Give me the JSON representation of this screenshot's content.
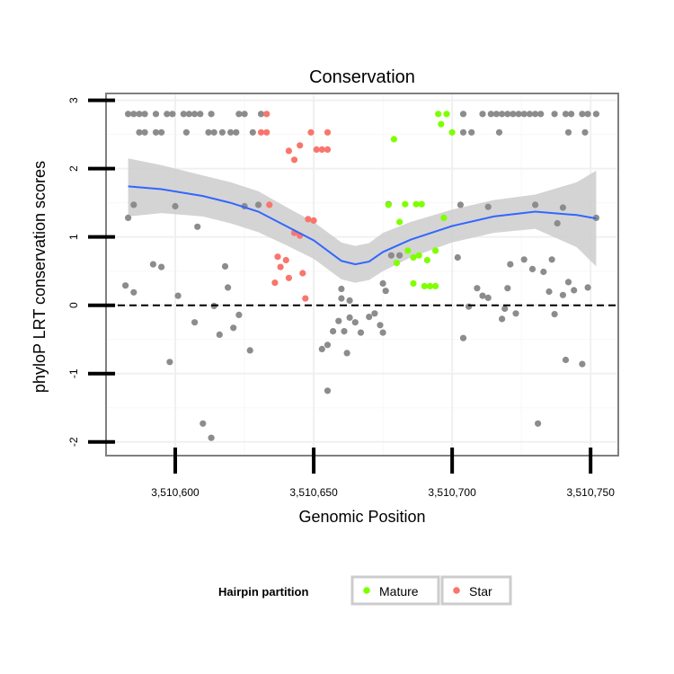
{
  "chart_data": {
    "type": "scatter",
    "title": "Conservation",
    "xlabel": "Genomic Position",
    "ylabel": "phyloP LRT conservation scores",
    "xlim": [
      3510575,
      3510760
    ],
    "ylim": [
      -2.2,
      3.1
    ],
    "x_ticks": [
      3510600,
      3510650,
      3510700,
      3510750
    ],
    "x_tick_labels": [
      "3,510,600",
      "3,510,650",
      "3,510,700",
      "3,510,750"
    ],
    "y_ticks": [
      3,
      2,
      1,
      0,
      -1,
      -2
    ],
    "y_tick_labels": [
      "3",
      "2",
      "1",
      "0",
      "-1",
      "-2"
    ],
    "reference_line_y": 0,
    "legend": {
      "title": "Hairpin partition",
      "placement": "bottom",
      "entries": [
        {
          "label": "Mature",
          "color": "#7fff00"
        },
        {
          "label": "Star",
          "color": "#f8766d"
        }
      ]
    },
    "colors": {
      "other": "#8c8c8c",
      "mature": "#7fff00",
      "star": "#f8766d",
      "smooth": "#3366ff",
      "band": "#cccccc"
    },
    "series": [
      {
        "name": "Other",
        "points": [
          [
            3510583,
            2.8
          ],
          [
            3510585,
            2.8
          ],
          [
            3510587,
            2.8
          ],
          [
            3510589,
            2.8
          ],
          [
            3510593,
            2.8
          ],
          [
            3510597,
            2.8
          ],
          [
            3510599,
            2.8
          ],
          [
            3510603,
            2.8
          ],
          [
            3510605,
            2.8
          ],
          [
            3510607,
            2.8
          ],
          [
            3510609,
            2.8
          ],
          [
            3510613,
            2.8
          ],
          [
            3510623,
            2.8
          ],
          [
            3510625,
            2.8
          ],
          [
            3510631,
            2.8
          ],
          [
            3510587,
            2.53
          ],
          [
            3510589,
            2.53
          ],
          [
            3510593,
            2.53
          ],
          [
            3510595,
            2.53
          ],
          [
            3510604,
            2.53
          ],
          [
            3510612,
            2.53
          ],
          [
            3510614,
            2.53
          ],
          [
            3510617,
            2.53
          ],
          [
            3510620,
            2.53
          ],
          [
            3510622,
            2.53
          ],
          [
            3510628,
            2.53
          ],
          [
            3510704,
            2.8
          ],
          [
            3510711,
            2.8
          ],
          [
            3510714,
            2.8
          ],
          [
            3510716,
            2.8
          ],
          [
            3510718,
            2.8
          ],
          [
            3510720,
            2.8
          ],
          [
            3510722,
            2.8
          ],
          [
            3510724,
            2.8
          ],
          [
            3510726,
            2.8
          ],
          [
            3510728,
            2.8
          ],
          [
            3510730,
            2.8
          ],
          [
            3510732,
            2.8
          ],
          [
            3510737,
            2.8
          ],
          [
            3510741,
            2.8
          ],
          [
            3510743,
            2.8
          ],
          [
            3510747,
            2.8
          ],
          [
            3510749,
            2.8
          ],
          [
            3510752,
            2.8
          ],
          [
            3510704,
            2.53
          ],
          [
            3510707,
            2.53
          ],
          [
            3510717,
            2.53
          ],
          [
            3510742,
            2.53
          ],
          [
            3510748,
            2.53
          ],
          [
            3510583,
            1.28
          ],
          [
            3510585,
            1.47
          ],
          [
            3510600,
            1.45
          ],
          [
            3510608,
            1.15
          ],
          [
            3510625,
            1.45
          ],
          [
            3510630,
            1.47
          ],
          [
            3510677,
            1.48
          ],
          [
            3510703,
            1.47
          ],
          [
            3510713,
            1.44
          ],
          [
            3510730,
            1.47
          ],
          [
            3510740,
            1.43
          ],
          [
            3510752,
            1.28
          ],
          [
            3510738,
            1.2
          ],
          [
            3510592,
            0.6
          ],
          [
            3510595,
            0.56
          ],
          [
            3510618,
            0.57
          ],
          [
            3510678,
            0.73
          ],
          [
            3510681,
            0.73
          ],
          [
            3510702,
            0.7
          ],
          [
            3510721,
            0.6
          ],
          [
            3510726,
            0.67
          ],
          [
            3510729,
            0.53
          ],
          [
            3510733,
            0.49
          ],
          [
            3510736,
            0.67
          ],
          [
            3510582,
            0.29
          ],
          [
            3510585,
            0.19
          ],
          [
            3510601,
            0.14
          ],
          [
            3510619,
            0.26
          ],
          [
            3510660,
            0.24
          ],
          [
            3510675,
            0.32
          ],
          [
            3510709,
            0.25
          ],
          [
            3510711,
            0.14
          ],
          [
            3510713,
            0.11
          ],
          [
            3510720,
            0.25
          ],
          [
            3510735,
            0.2
          ],
          [
            3510740,
            0.15
          ],
          [
            3510742,
            0.34
          ],
          [
            3510744,
            0.22
          ],
          [
            3510749,
            0.26
          ],
          [
            3510614,
            -0.01
          ],
          [
            3510660,
            0.1
          ],
          [
            3510663,
            0.07
          ],
          [
            3510676,
            0.21
          ],
          [
            3510706,
            -0.02
          ],
          [
            3510719,
            -0.05
          ],
          [
            3510718,
            -0.2
          ],
          [
            3510723,
            -0.12
          ],
          [
            3510737,
            -0.13
          ],
          [
            3510607,
            -0.25
          ],
          [
            3510616,
            -0.43
          ],
          [
            3510621,
            -0.33
          ],
          [
            3510623,
            -0.14
          ],
          [
            3510627,
            -0.66
          ],
          [
            3510653,
            -0.64
          ],
          [
            3510655,
            -0.58
          ],
          [
            3510657,
            -0.38
          ],
          [
            3510659,
            -0.23
          ],
          [
            3510661,
            -0.38
          ],
          [
            3510663,
            -0.18
          ],
          [
            3510665,
            -0.25
          ],
          [
            3510667,
            -0.4
          ],
          [
            3510670,
            -0.17
          ],
          [
            3510672,
            -0.12
          ],
          [
            3510674,
            -0.29
          ],
          [
            3510675,
            -0.4
          ],
          [
            3510704,
            -0.48
          ],
          [
            3510598,
            -0.83
          ],
          [
            3510662,
            -0.7
          ],
          [
            3510741,
            -0.8
          ],
          [
            3510747,
            -0.86
          ],
          [
            3510655,
            -1.25
          ],
          [
            3510610,
            -1.73
          ],
          [
            3510613,
            -1.94
          ],
          [
            3510731,
            -1.73
          ]
        ]
      },
      {
        "name": "Mature",
        "points": [
          [
            3510679,
            2.43
          ],
          [
            3510695,
            2.8
          ],
          [
            3510698,
            2.8
          ],
          [
            3510696,
            2.65
          ],
          [
            3510700,
            2.53
          ],
          [
            3510677,
            1.47
          ],
          [
            3510683,
            1.48
          ],
          [
            3510687,
            1.48
          ],
          [
            3510689,
            1.48
          ],
          [
            3510697,
            1.28
          ],
          [
            3510681,
            1.22
          ],
          [
            3510684,
            0.8
          ],
          [
            3510686,
            0.7
          ],
          [
            3510688,
            0.73
          ],
          [
            3510691,
            0.66
          ],
          [
            3510694,
            0.8
          ],
          [
            3510680,
            0.62
          ],
          [
            3510686,
            0.32
          ],
          [
            3510690,
            0.28
          ],
          [
            3510692,
            0.28
          ],
          [
            3510694,
            0.28
          ]
        ]
      },
      {
        "name": "Star",
        "points": [
          [
            3510633,
            2.8
          ],
          [
            3510631,
            2.53
          ],
          [
            3510633,
            2.53
          ],
          [
            3510649,
            2.53
          ],
          [
            3510655,
            2.53
          ],
          [
            3510641,
            2.26
          ],
          [
            3510651,
            2.28
          ],
          [
            3510653,
            2.28
          ],
          [
            3510655,
            2.28
          ],
          [
            3510645,
            2.34
          ],
          [
            3510643,
            2.13
          ],
          [
            3510634,
            1.47
          ],
          [
            3510650,
            1.24
          ],
          [
            3510648,
            1.26
          ],
          [
            3510643,
            1.06
          ],
          [
            3510645,
            1.02
          ],
          [
            3510637,
            0.71
          ],
          [
            3510640,
            0.66
          ],
          [
            3510638,
            0.56
          ],
          [
            3510641,
            0.4
          ],
          [
            3510646,
            0.47
          ],
          [
            3510636,
            0.33
          ],
          [
            3510647,
            0.1
          ]
        ]
      }
    ],
    "smooth_line": {
      "x": [
        3510583,
        3510595,
        3510610,
        3510620,
        3510630,
        3510640,
        3510650,
        3510660,
        3510665,
        3510670,
        3510675,
        3510685,
        3510700,
        3510715,
        3510730,
        3510745,
        3510752
      ],
      "y": [
        1.74,
        1.7,
        1.6,
        1.5,
        1.37,
        1.16,
        0.95,
        0.65,
        0.6,
        0.64,
        0.78,
        0.96,
        1.16,
        1.3,
        1.37,
        1.32,
        1.27
      ]
    },
    "confidence_band": {
      "x": [
        3510583,
        3510595,
        3510610,
        3510620,
        3510630,
        3510640,
        3510650,
        3510660,
        3510665,
        3510670,
        3510675,
        3510685,
        3510700,
        3510715,
        3510730,
        3510745,
        3510752
      ],
      "upper": [
        2.15,
        2.05,
        1.9,
        1.8,
        1.67,
        1.44,
        1.22,
        0.92,
        0.87,
        0.91,
        1.06,
        1.22,
        1.4,
        1.54,
        1.62,
        1.8,
        1.97
      ],
      "lower": [
        1.3,
        1.35,
        1.3,
        1.2,
        1.07,
        0.88,
        0.68,
        0.38,
        0.33,
        0.37,
        0.5,
        0.7,
        0.92,
        1.06,
        1.12,
        0.85,
        0.57
      ]
    }
  }
}
